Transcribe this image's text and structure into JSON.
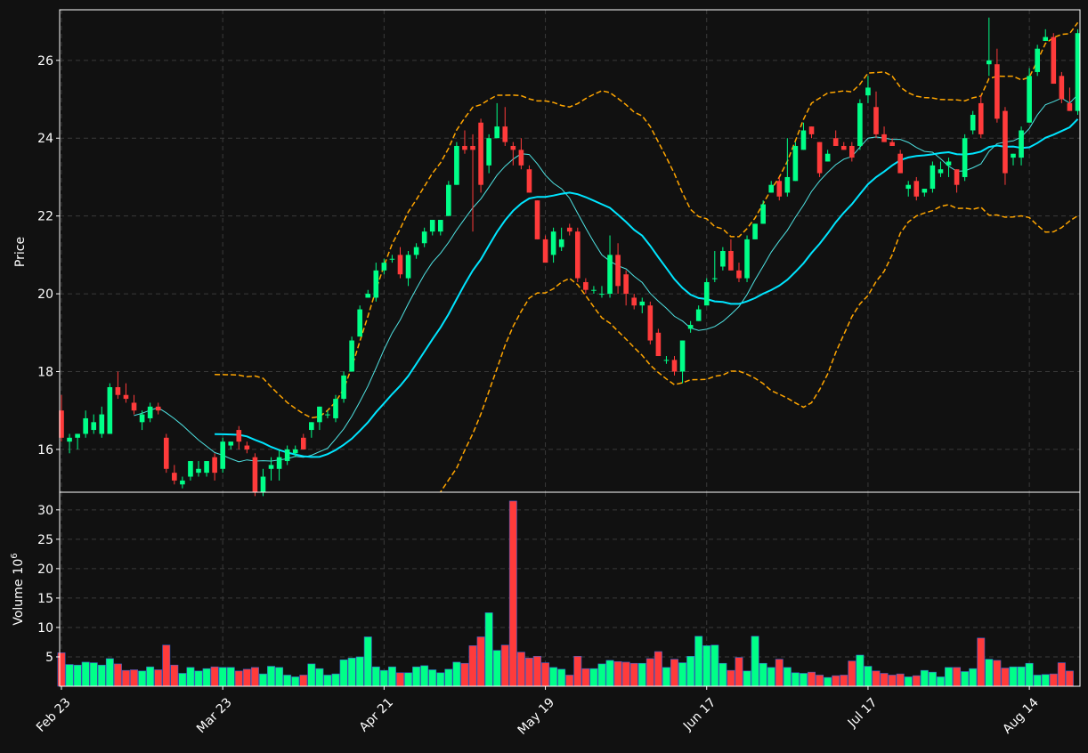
{
  "colors": {
    "background": "#111111",
    "up": "#00ff88",
    "down": "#ff3b3b",
    "ma_fast": "#4fe3e3",
    "ma_slow": "#00e5ff",
    "bollinger": "#ffa500",
    "grid": "#3a3a3a",
    "axis": "#ffffff"
  },
  "chart_data": {
    "type": "candlestick",
    "title": "",
    "x_tick_labels": [
      "Feb 23",
      "Mar 23",
      "Apr 21",
      "May 19",
      "Jun 17",
      "Jul 17",
      "Aug 14"
    ],
    "x_tick_index": [
      0,
      20,
      40,
      60,
      80,
      100,
      120
    ],
    "price_panel": {
      "ylabel": "Price",
      "ylim": [
        14.9,
        27.3
      ],
      "yticks": [
        16,
        18,
        20,
        22,
        24,
        26
      ],
      "grid": true
    },
    "volume_panel": {
      "ylabel": "Volume",
      "ylabel_exponent": "10",
      "ylabel_power": "6",
      "ylim": [
        0,
        33
      ],
      "yticks": [
        5,
        10,
        15,
        20,
        25,
        30
      ],
      "grid": true
    },
    "indicators": [
      "moving average (fast)",
      "moving average (slow)",
      "bollinger bands"
    ],
    "ohlc": [
      [
        17.0,
        17.4,
        16.2,
        16.3
      ],
      [
        16.2,
        16.4,
        15.9,
        16.3
      ],
      [
        16.3,
        16.4,
        16.0,
        16.4
      ],
      [
        16.4,
        17.0,
        16.3,
        16.8
      ],
      [
        16.5,
        16.9,
        16.4,
        16.7
      ],
      [
        16.4,
        17.1,
        16.3,
        16.9
      ],
      [
        16.4,
        17.7,
        16.4,
        17.6
      ],
      [
        17.6,
        18.0,
        17.3,
        17.4
      ],
      [
        17.4,
        17.7,
        17.2,
        17.3
      ],
      [
        17.2,
        17.4,
        16.9,
        17.0
      ],
      [
        16.7,
        17.0,
        16.5,
        16.9
      ],
      [
        16.8,
        17.2,
        16.7,
        17.1
      ],
      [
        17.1,
        17.2,
        16.9,
        17.0
      ],
      [
        16.3,
        16.4,
        15.4,
        15.5
      ],
      [
        15.4,
        15.6,
        15.1,
        15.2
      ],
      [
        15.1,
        15.3,
        15.0,
        15.2
      ],
      [
        15.3,
        15.7,
        15.2,
        15.7
      ],
      [
        15.4,
        15.7,
        15.3,
        15.5
      ],
      [
        15.4,
        15.7,
        15.3,
        15.7
      ],
      [
        15.8,
        15.9,
        15.2,
        15.4
      ],
      [
        15.5,
        16.3,
        15.4,
        16.2
      ],
      [
        16.1,
        16.2,
        16.0,
        16.2
      ],
      [
        16.5,
        16.6,
        16.0,
        16.2
      ],
      [
        16.1,
        16.2,
        15.9,
        16.0
      ],
      [
        15.8,
        15.9,
        14.8,
        14.9
      ],
      [
        14.9,
        15.5,
        14.8,
        15.3
      ],
      [
        15.5,
        15.8,
        15.2,
        15.6
      ],
      [
        15.5,
        16.0,
        15.2,
        15.8
      ],
      [
        15.7,
        16.1,
        15.6,
        16.0
      ],
      [
        15.9,
        16.1,
        15.8,
        16.0
      ],
      [
        16.3,
        16.4,
        16.0,
        16.0
      ],
      [
        16.5,
        16.7,
        16.3,
        16.7
      ],
      [
        16.7,
        17.1,
        16.5,
        17.1
      ],
      [
        16.9,
        17.0,
        16.8,
        16.9
      ],
      [
        16.8,
        17.4,
        16.7,
        17.3
      ],
      [
        17.3,
        18.0,
        17.2,
        17.9
      ],
      [
        18.0,
        18.9,
        18.0,
        18.8
      ],
      [
        18.9,
        19.7,
        18.9,
        19.6
      ],
      [
        19.9,
        20.1,
        19.9,
        20.0
      ],
      [
        19.9,
        20.8,
        19.8,
        20.6
      ],
      [
        20.6,
        20.9,
        20.5,
        20.8
      ],
      [
        20.9,
        21.0,
        20.8,
        20.9
      ],
      [
        21.0,
        21.2,
        20.4,
        20.5
      ],
      [
        20.4,
        21.1,
        20.2,
        21.0
      ],
      [
        21.0,
        21.3,
        20.9,
        21.2
      ],
      [
        21.3,
        21.7,
        21.2,
        21.6
      ],
      [
        21.6,
        21.9,
        21.5,
        21.9
      ],
      [
        21.6,
        21.9,
        21.5,
        21.9
      ],
      [
        22.0,
        22.9,
        22.0,
        22.8
      ],
      [
        22.8,
        23.9,
        22.8,
        23.8
      ],
      [
        23.8,
        24.2,
        23.6,
        23.7
      ],
      [
        23.8,
        24.1,
        21.6,
        23.7
      ],
      [
        24.4,
        24.5,
        22.6,
        22.8
      ],
      [
        23.3,
        24.1,
        23.1,
        24.0
      ],
      [
        24.0,
        24.9,
        24.0,
        24.3
      ],
      [
        24.3,
        24.8,
        23.8,
        23.9
      ],
      [
        23.8,
        23.9,
        23.3,
        23.7
      ],
      [
        23.7,
        24.0,
        23.2,
        23.3
      ],
      [
        23.2,
        23.3,
        22.6,
        22.6
      ],
      [
        22.4,
        22.4,
        21.4,
        21.4
      ],
      [
        21.4,
        21.5,
        20.8,
        20.8
      ],
      [
        21.0,
        21.7,
        20.8,
        21.6
      ],
      [
        21.2,
        21.7,
        21.1,
        21.4
      ],
      [
        21.7,
        21.8,
        21.5,
        21.6
      ],
      [
        21.6,
        21.7,
        20.3,
        20.4
      ],
      [
        20.3,
        20.4,
        20.0,
        20.1
      ],
      [
        20.1,
        20.2,
        20.0,
        20.1
      ],
      [
        20.0,
        20.2,
        19.9,
        20.0
      ],
      [
        20.0,
        21.5,
        19.9,
        21.0
      ],
      [
        21.0,
        21.3,
        20.0,
        20.2
      ],
      [
        20.5,
        20.6,
        19.7,
        20.0
      ],
      [
        19.9,
        20.0,
        19.6,
        19.7
      ],
      [
        19.7,
        19.9,
        19.5,
        19.8
      ],
      [
        19.7,
        19.8,
        18.7,
        18.8
      ],
      [
        19.0,
        19.1,
        18.4,
        18.4
      ],
      [
        18.3,
        18.4,
        18.2,
        18.3
      ],
      [
        18.3,
        18.4,
        17.9,
        18.0
      ],
      [
        18.0,
        18.8,
        17.7,
        18.8
      ],
      [
        19.1,
        19.3,
        19.0,
        19.2
      ],
      [
        19.3,
        19.7,
        19.3,
        19.6
      ],
      [
        19.7,
        20.4,
        19.7,
        20.3
      ],
      [
        20.4,
        21.1,
        20.3,
        20.4
      ],
      [
        20.7,
        21.2,
        20.6,
        21.1
      ],
      [
        21.1,
        21.4,
        20.6,
        20.6
      ],
      [
        20.6,
        20.8,
        20.3,
        20.4
      ],
      [
        20.4,
        21.5,
        20.3,
        21.4
      ],
      [
        21.4,
        21.8,
        21.4,
        21.8
      ],
      [
        21.8,
        22.4,
        21.8,
        22.3
      ],
      [
        22.6,
        22.9,
        22.6,
        22.8
      ],
      [
        22.9,
        23.0,
        22.4,
        22.5
      ],
      [
        22.6,
        24.0,
        22.5,
        23.0
      ],
      [
        22.9,
        23.9,
        22.9,
        23.8
      ],
      [
        23.7,
        24.4,
        23.7,
        24.2
      ],
      [
        24.3,
        24.3,
        24.0,
        24.1
      ],
      [
        23.9,
        23.9,
        23.0,
        23.1
      ],
      [
        23.4,
        23.7,
        23.4,
        23.6
      ],
      [
        24.0,
        24.2,
        23.8,
        23.8
      ],
      [
        23.8,
        23.9,
        23.7,
        23.7
      ],
      [
        23.8,
        23.9,
        23.4,
        23.5
      ],
      [
        23.8,
        25.0,
        23.7,
        24.9
      ],
      [
        25.1,
        25.6,
        24.9,
        25.3
      ],
      [
        24.8,
        25.2,
        24.0,
        24.1
      ],
      [
        24.1,
        24.3,
        23.9,
        23.9
      ],
      [
        23.9,
        24.0,
        23.8,
        23.8
      ],
      [
        23.6,
        23.7,
        23.1,
        23.1
      ],
      [
        22.7,
        22.9,
        22.5,
        22.8
      ],
      [
        22.9,
        23.0,
        22.4,
        22.5
      ],
      [
        22.6,
        22.7,
        22.5,
        22.7
      ],
      [
        22.7,
        23.4,
        22.6,
        23.3
      ],
      [
        23.1,
        23.4,
        23.0,
        23.2
      ],
      [
        23.3,
        23.5,
        23.0,
        23.4
      ],
      [
        23.2,
        23.2,
        22.6,
        22.8
      ],
      [
        23.0,
        24.1,
        22.9,
        24.0
      ],
      [
        24.2,
        24.7,
        24.1,
        24.6
      ],
      [
        24.9,
        25.1,
        24.0,
        24.1
      ],
      [
        25.9,
        27.1,
        25.6,
        26.0
      ],
      [
        25.9,
        26.3,
        24.4,
        24.5
      ],
      [
        24.7,
        24.8,
        22.8,
        23.1
      ],
      [
        23.5,
        23.6,
        23.3,
        23.6
      ],
      [
        23.5,
        24.3,
        23.3,
        24.2
      ],
      [
        24.4,
        25.8,
        24.4,
        25.6
      ],
      [
        25.7,
        26.4,
        25.6,
        26.3
      ],
      [
        26.5,
        26.8,
        26.5,
        26.6
      ],
      [
        26.6,
        26.7,
        25.4,
        25.4
      ],
      [
        25.6,
        25.7,
        24.9,
        25.0
      ],
      [
        24.9,
        25.3,
        24.7,
        24.7
      ],
      [
        24.7,
        26.8,
        24.6,
        26.7
      ]
    ],
    "volume": [
      5.7,
      3.7,
      3.6,
      4.1,
      4.0,
      3.6,
      4.7,
      3.8,
      2.7,
      2.8,
      2.6,
      3.3,
      2.8,
      7.0,
      3.6,
      2.2,
      3.2,
      2.6,
      3.0,
      3.3,
      3.2,
      3.2,
      2.6,
      2.9,
      3.2,
      2.1,
      3.4,
      3.2,
      1.9,
      1.6,
      1.9,
      3.8,
      3.0,
      1.9,
      2.1,
      4.5,
      4.8,
      5.0,
      8.4,
      3.3,
      2.7,
      3.3,
      2.3,
      2.3,
      3.3,
      3.5,
      2.8,
      2.3,
      2.9,
      4.1,
      3.9,
      6.9,
      8.4,
      12.5,
      6.1,
      7.0,
      31.5,
      5.8,
      4.8,
      5.1,
      4.0,
      3.2,
      2.9,
      1.9,
      5.1,
      3.0,
      3.0,
      3.8,
      4.4,
      4.2,
      4.1,
      3.9,
      3.9,
      4.7,
      5.9,
      3.2,
      4.6,
      4.0,
      5.1,
      8.5,
      6.9,
      7.0,
      3.9,
      2.7,
      4.9,
      2.6,
      8.5,
      3.9,
      3.2,
      4.6,
      3.2,
      2.3,
      2.2,
      2.4,
      1.9,
      1.5,
      1.8,
      1.9,
      4.3,
      5.3,
      3.4,
      2.6,
      2.2,
      1.9,
      2.1,
      1.6,
      1.8,
      2.7,
      2.4,
      1.6,
      3.2,
      3.2,
      2.5,
      3.0,
      8.2,
      4.6,
      4.4,
      3.1,
      3.3,
      3.3,
      3.9,
      1.9,
      2.0,
      2.1,
      4.0,
      2.6
    ]
  }
}
